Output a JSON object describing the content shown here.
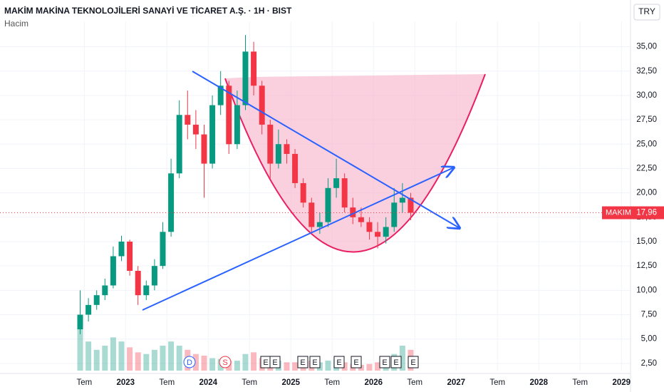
{
  "header": {
    "title": "MAKİM MAKİNA TEKNOLOJİLERİ SANAYİ VE TİCARET A.Ş. · 1H · BIST",
    "subtitle": "Hacim",
    "currency": "TRY"
  },
  "chart_data": {
    "type": "candlestick",
    "x": [
      2022.45,
      2022.55,
      2022.65,
      2022.75,
      2022.85,
      2022.95,
      2023.05,
      2023.15,
      2023.25,
      2023.35,
      2023.45,
      2023.55,
      2023.65,
      2023.75,
      2023.85,
      2023.95,
      2024.05,
      2024.15,
      2024.25,
      2024.35,
      2024.45,
      2024.55,
      2024.65,
      2024.75,
      2024.85,
      2024.95,
      2025.05,
      2025.15,
      2025.25,
      2025.35,
      2025.45,
      2025.55,
      2025.65,
      2025.75,
      2025.85,
      2025.95,
      2026.05,
      2026.15,
      2026.25,
      2026.35,
      2026.45
    ],
    "open": [
      6.0,
      7.5,
      8.5,
      9.5,
      10.5,
      13.5,
      15.0,
      12.0,
      9.5,
      10.5,
      12.5,
      16.0,
      22.0,
      28.0,
      27.0,
      26.0,
      23.0,
      29.0,
      31.0,
      25.0,
      29.0,
      34.5,
      31.0,
      27.0,
      23.0,
      25.0,
      24.0,
      21.0,
      19.0,
      16.5,
      17.0,
      20.5,
      21.5,
      18.5,
      17.5,
      17.0,
      16.0,
      15.5,
      16.5,
      19.0,
      19.5
    ],
    "high": [
      10.0,
      9.2,
      10.0,
      11.2,
      14.5,
      15.6,
      15.2,
      12.5,
      11.0,
      13.2,
      17.0,
      23.5,
      29.5,
      30.5,
      28.5,
      27.0,
      30.0,
      32.5,
      31.5,
      30.5,
      36.2,
      35.5,
      31.5,
      27.5,
      26.5,
      25.5,
      24.5,
      21.5,
      19.5,
      18.0,
      21.5,
      23.5,
      22.0,
      19.5,
      18.5,
      17.5,
      17.0,
      17.5,
      20.5,
      21.0,
      20.0
    ],
    "low": [
      5.5,
      6.8,
      8.0,
      9.0,
      10.2,
      13.0,
      11.5,
      8.5,
      9.0,
      10.0,
      12.2,
      15.5,
      21.5,
      25.5,
      24.5,
      19.5,
      22.5,
      28.0,
      24.0,
      24.5,
      28.5,
      30.0,
      26.0,
      21.5,
      22.5,
      23.0,
      20.5,
      18.5,
      15.8,
      15.8,
      16.5,
      19.5,
      18.0,
      16.8,
      16.5,
      15.2,
      14.3,
      14.8,
      16.0,
      18.0,
      17.2
    ],
    "close": [
      7.5,
      8.5,
      9.5,
      10.5,
      13.5,
      15.0,
      12.0,
      9.5,
      10.5,
      12.5,
      16.0,
      22.0,
      28.0,
      27.0,
      26.0,
      23.0,
      29.0,
      31.0,
      25.0,
      29.0,
      34.5,
      31.0,
      27.0,
      23.0,
      25.0,
      24.0,
      21.0,
      19.0,
      16.5,
      17.0,
      20.5,
      21.5,
      18.5,
      17.5,
      17.0,
      16.0,
      15.5,
      16.5,
      19.0,
      19.5,
      17.96
    ],
    "volume": [
      60,
      35,
      25,
      30,
      40,
      35,
      28,
      22,
      20,
      25,
      30,
      35,
      30,
      25,
      20,
      18,
      15,
      14,
      12,
      12,
      20,
      22,
      15,
      10,
      12,
      10,
      10,
      8,
      12,
      10,
      12,
      14,
      10,
      8,
      7,
      8,
      10,
      12,
      20,
      30,
      25
    ],
    "up_color": "#089981",
    "down_color": "#f23645",
    "last_price": {
      "value": 17.96,
      "label": "17,96",
      "symbol": "MAKIM",
      "color": "#f23645"
    },
    "events": [
      "D",
      "S",
      "E",
      "E",
      "E",
      "E",
      "E",
      "E",
      "E",
      "E",
      "E"
    ],
    "xlim": [
      2021.48,
      2029.11
    ],
    "xticks": [
      {
        "value": 2022.5,
        "label": "Tem"
      },
      2023,
      {
        "value": 2023.5,
        "label": "Tem"
      },
      2024,
      {
        "value": 2024.5,
        "label": "Tem"
      },
      2025,
      {
        "value": 2025.5,
        "label": "Tem"
      },
      2026,
      {
        "value": 2026.5,
        "label": "Tem"
      },
      2027,
      {
        "value": 2027.5,
        "label": "Tem"
      },
      2028,
      {
        "value": 2028.5,
        "label": "Tem"
      },
      2029
    ],
    "ylim": [
      1.76,
      37.6
    ],
    "yticks": [
      {
        "value": 2.5,
        "label": "2,50"
      },
      {
        "value": 5,
        "label": "5,00"
      },
      {
        "value": 7.5,
        "label": "7,50"
      },
      {
        "value": 10,
        "label": "10,00"
      },
      {
        "value": 12.5,
        "label": "12,50"
      },
      {
        "value": 15,
        "label": "15,00"
      },
      {
        "value": 17.5,
        "label": "17,50"
      },
      {
        "value": 20,
        "label": "20,00"
      },
      {
        "value": 22.5,
        "label": "22,50"
      },
      {
        "value": 25,
        "label": "25,00"
      },
      {
        "value": 27.5,
        "label": "27,50"
      },
      {
        "value": 30,
        "label": "30,00"
      },
      {
        "value": 32.5,
        "label": "32,50"
      },
      {
        "value": 35,
        "label": "35,00"
      }
    ],
    "grid": true
  }
}
